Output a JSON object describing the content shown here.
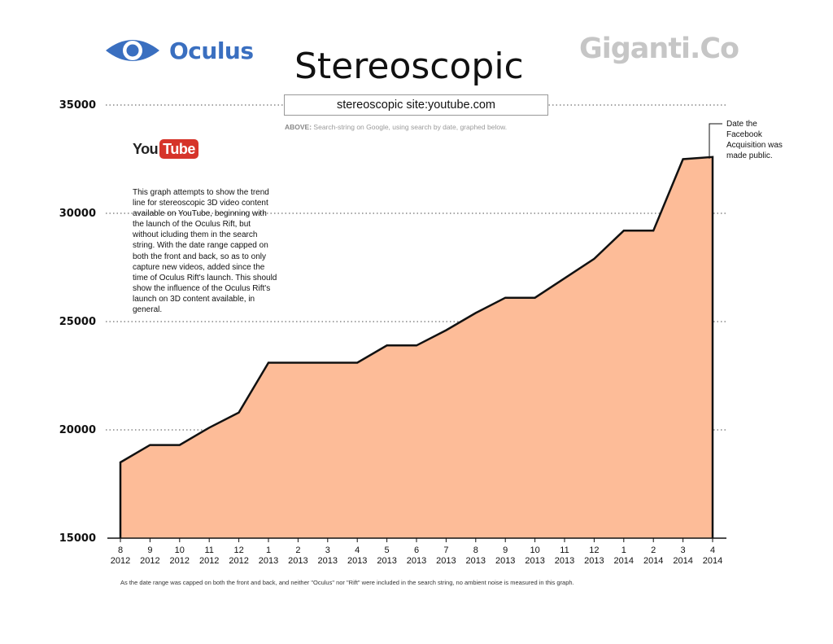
{
  "header": {
    "title": "Stereoscopic",
    "oculus_logo_text": "Oculus",
    "giganti_logo_text": "Giganti.Co",
    "youtube_logo_you": "You",
    "youtube_logo_tube": "Tube"
  },
  "search": {
    "query": "stereoscopic site:youtube.com",
    "caption_label": "ABOVE:",
    "caption_text": " Search-string on Google, using search by date, graphed below."
  },
  "description": "This graph attempts to show the trend line for stereoscopic 3D video content available on YouTube, beginning with the launch of the Oculus Rift, but without icluding them in the search string. With the date range capped on both the front and back, so as to only capture new videos, added since the time of Oculus Rift's launch. This should show the influence of the Oculus Rift's launch on 3D content available, in general.",
  "annotation": "Date the Facebook Acquisition was made public.",
  "footnote": "As the date range was capped on both the front and back, and neither \"Oculus\" nor \"Rift\" were included in the search string, no ambient noise is measured in this graph.",
  "colors": {
    "area_fill": "#fdbc98",
    "line": "#111111",
    "oculus_blue": "#3a6fc0",
    "youtube_red": "#d6342a",
    "giganti_gray": "#c6c6c6"
  },
  "chart_data": {
    "type": "area",
    "title": "Stereoscopic",
    "categories": [
      {
        "month": "8",
        "year": "2012"
      },
      {
        "month": "9",
        "year": "2012"
      },
      {
        "month": "10",
        "year": "2012"
      },
      {
        "month": "11",
        "year": "2012"
      },
      {
        "month": "12",
        "year": "2012"
      },
      {
        "month": "1",
        "year": "2013"
      },
      {
        "month": "2",
        "year": "2013"
      },
      {
        "month": "3",
        "year": "2013"
      },
      {
        "month": "4",
        "year": "2013"
      },
      {
        "month": "5",
        "year": "2013"
      },
      {
        "month": "6",
        "year": "2013"
      },
      {
        "month": "7",
        "year": "2013"
      },
      {
        "month": "8",
        "year": "2013"
      },
      {
        "month": "9",
        "year": "2013"
      },
      {
        "month": "10",
        "year": "2013"
      },
      {
        "month": "11",
        "year": "2013"
      },
      {
        "month": "12",
        "year": "2013"
      },
      {
        "month": "1",
        "year": "2014"
      },
      {
        "month": "2",
        "year": "2014"
      },
      {
        "month": "3",
        "year": "2014"
      },
      {
        "month": "4",
        "year": "2014"
      }
    ],
    "values": [
      18500,
      19300,
      19300,
      20100,
      20800,
      23100,
      23100,
      23100,
      23100,
      23900,
      23900,
      24600,
      25400,
      26100,
      26100,
      27000,
      27900,
      29200,
      29200,
      32500,
      32600
    ],
    "ylim": [
      15000,
      35000
    ],
    "yticks": [
      35000,
      30000,
      25000,
      20000,
      15000
    ],
    "grid": "dotted horizontal",
    "xlabel": "",
    "ylabel": ""
  }
}
